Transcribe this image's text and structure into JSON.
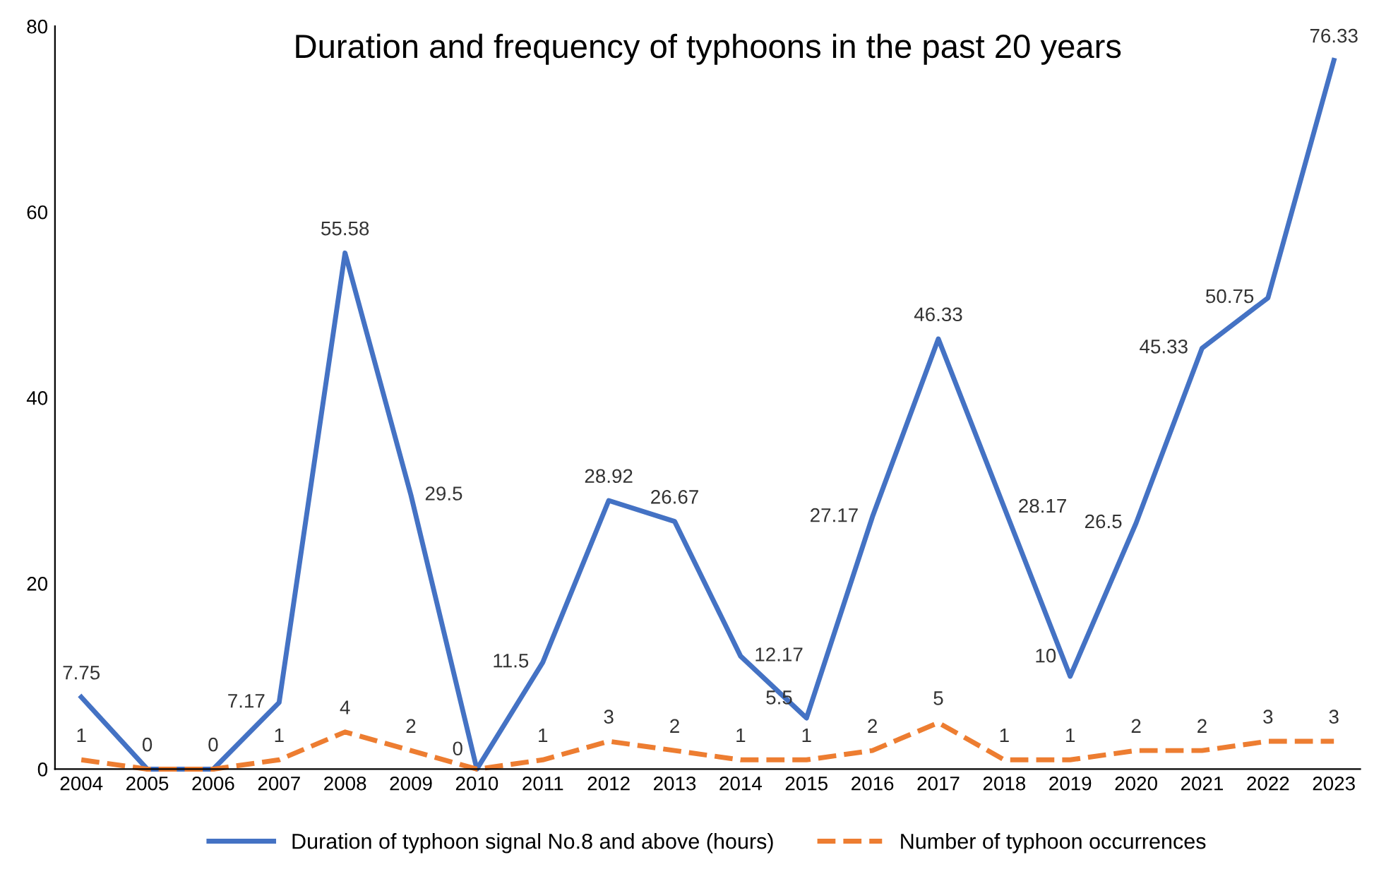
{
  "chart_data": {
    "type": "line",
    "title": "Duration and frequency of typhoons in the past 20 years",
    "categories": [
      "2004",
      "2005",
      "2006",
      "2007",
      "2008",
      "2009",
      "2010",
      "2011",
      "2012",
      "2013",
      "2014",
      "2015",
      "2016",
      "2017",
      "2018",
      "2019",
      "2020",
      "2021",
      "2022",
      "2023"
    ],
    "series": [
      {
        "name": "Duration of typhoon signal No.8 and above (hours)",
        "color": "#4472c4",
        "line_style": "solid",
        "values": [
          7.75,
          0,
          0,
          7.17,
          55.58,
          29.5,
          0,
          11.5,
          28.92,
          26.67,
          12.17,
          5.5,
          27.17,
          46.33,
          28.17,
          10,
          26.5,
          45.33,
          50.75,
          76.33
        ]
      },
      {
        "name": "Number of typhoon occurrences",
        "color": "#ed7d31",
        "line_style": "dashed",
        "values": [
          1,
          0,
          0,
          1,
          4,
          2,
          0,
          1,
          3,
          2,
          1,
          1,
          2,
          5,
          1,
          1,
          2,
          2,
          3,
          3
        ],
        "value_labels": [
          "1",
          null,
          null,
          "1",
          "4",
          "2",
          null,
          "1",
          "3",
          "2",
          "1",
          "1",
          "2",
          "5",
          "1",
          "1",
          "2",
          "2",
          "3",
          "3"
        ]
      }
    ],
    "ylim": [
      0,
      80
    ],
    "yticks": [
      0,
      20,
      40,
      60,
      80
    ],
    "grid": false,
    "legend": "bottom",
    "marker": "none",
    "data_labels": true
  }
}
